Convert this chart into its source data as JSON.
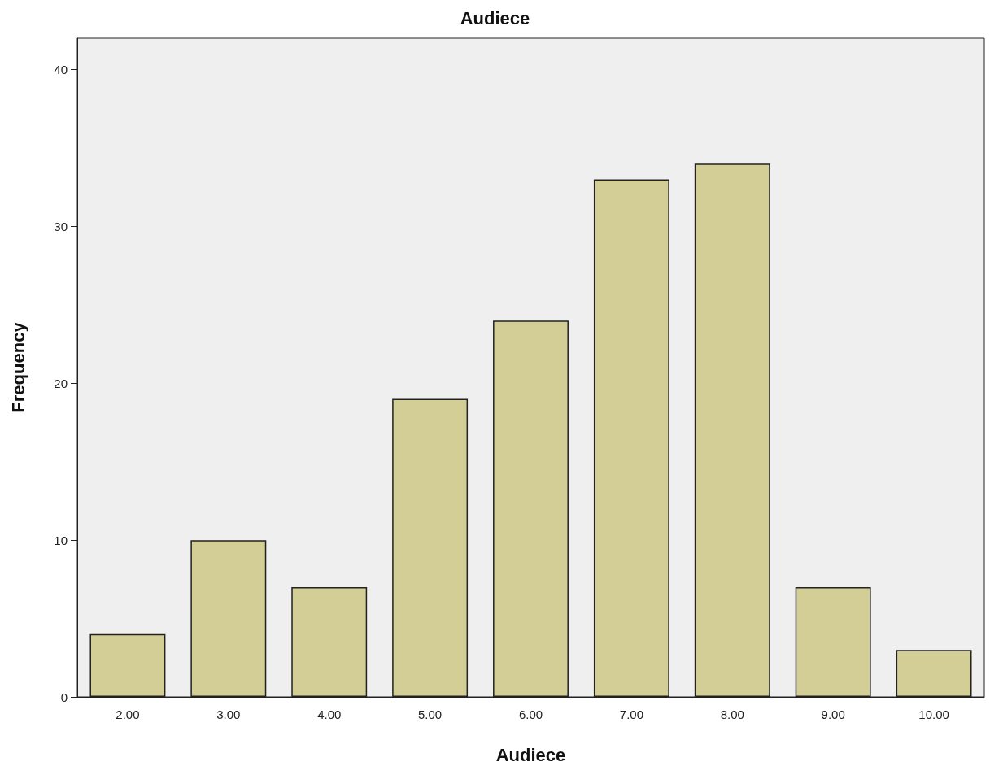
{
  "chart_data": {
    "type": "bar",
    "title": "Audiece",
    "xlabel": "Audiece",
    "ylabel": "Frequency",
    "categories": [
      "2.00",
      "3.00",
      "4.00",
      "5.00",
      "6.00",
      "7.00",
      "8.00",
      "9.00",
      "10.00"
    ],
    "values": [
      4,
      10,
      7,
      19,
      24,
      33,
      34,
      7,
      3
    ],
    "color": "#d3cd96",
    "ylim": [
      0,
      42
    ],
    "yticks": [
      0,
      10,
      20,
      30,
      40
    ],
    "grid": false
  }
}
